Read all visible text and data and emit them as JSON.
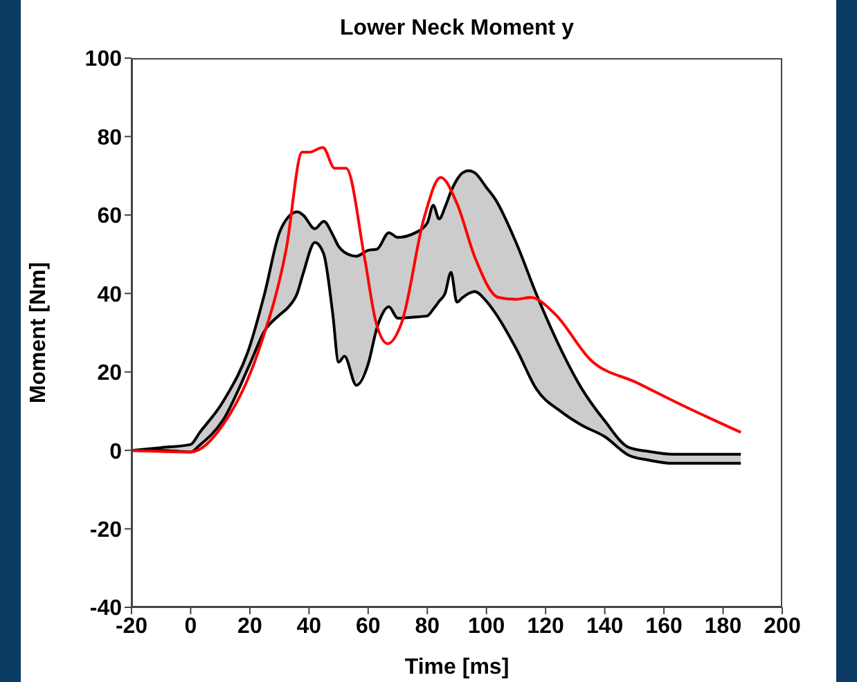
{
  "chart_data": {
    "type": "line",
    "title": "Lower Neck Moment y",
    "xlabel": "Time [ms]",
    "ylabel": "Moment [Nm]",
    "xlim": [
      -20,
      200
    ],
    "xticks": [
      -20,
      0,
      20,
      40,
      60,
      80,
      100,
      120,
      140,
      160,
      180,
      200
    ],
    "ylim": [
      -40,
      100
    ],
    "yticks": [
      -40,
      -20,
      0,
      20,
      40,
      60,
      80,
      100
    ],
    "grid": false,
    "series": [
      {
        "type": "line",
        "color": "#000000",
        "x": [
          -20,
          -10,
          0,
          3,
          11,
          20,
          25,
          30,
          33,
          36,
          38,
          42,
          45,
          48,
          50,
          52,
          56,
          60,
          63,
          67,
          70,
          76,
          80,
          82,
          84,
          86,
          88,
          90,
          92,
          94,
          96,
          100,
          103,
          110,
          117,
          125,
          132,
          140,
          148,
          155,
          163,
          175,
          186
        ],
        "upper": [
          0,
          0.7,
          1.5,
          4.5,
          12.5,
          26.6,
          40,
          55.5,
          59.5,
          60.8,
          60,
          56.5,
          58.4,
          55,
          52,
          50.5,
          49.5,
          51,
          51.3,
          55.5,
          54.3,
          55.5,
          58,
          62.5,
          59,
          62,
          66,
          69,
          70.8,
          71.3,
          70.8,
          67,
          64,
          53,
          39.6,
          26,
          16,
          7.5,
          0.8,
          -0.3,
          -1,
          -1,
          -1
        ],
        "values": [
          0,
          0.7,
          1.5,
          4.5,
          12.5,
          26.6,
          40,
          55.5,
          59.5,
          60.8,
          60,
          56.5,
          58.4,
          55,
          52,
          50.5,
          49.5,
          51,
          51.3,
          55.5,
          54.3,
          55.5,
          58,
          62.5,
          59,
          62,
          66,
          69,
          70.8,
          71.3,
          70.8,
          67,
          64,
          53,
          39.6,
          26,
          16,
          7.5,
          0.8,
          -0.3,
          -1,
          -1,
          -1
        ],
        "lower": [
          0,
          0,
          -0.4,
          1.3,
          7.8,
          22,
          30.5,
          34.5,
          36.5,
          40,
          45,
          53,
          50,
          35,
          22.5,
          24,
          16.6,
          22,
          31.3,
          36.6,
          33.7,
          34,
          34.3,
          36,
          38,
          40,
          45.4,
          37.8,
          39,
          40,
          40.5,
          38,
          35,
          26,
          15.5,
          10,
          6.5,
          3.5,
          -1.2,
          -2.5,
          -3.3,
          -3.3,
          -3.3
        ]
      },
      {
        "type": "line",
        "color": "#000000",
        "x": [
          -20,
          -10,
          0,
          3,
          11,
          20,
          25,
          30,
          33,
          36,
          38,
          42,
          45,
          48,
          50,
          52,
          56,
          60,
          63,
          67,
          70,
          76,
          80,
          82,
          84,
          86,
          88,
          90,
          92,
          94,
          96,
          100,
          103,
          110,
          117,
          125,
          132,
          140,
          148,
          155,
          163,
          175,
          186
        ],
        "values": [
          0,
          0,
          -0.4,
          1.3,
          7.8,
          22,
          30.5,
          34.5,
          36.5,
          40,
          45,
          53,
          50,
          35,
          22.5,
          24,
          16.6,
          22,
          31.3,
          36.6,
          33.7,
          34,
          34.3,
          36,
          38,
          40,
          45.4,
          37.8,
          39,
          40,
          40.5,
          38,
          35,
          26,
          15.5,
          10,
          6.5,
          3.5,
          -1.2,
          -2.5,
          -3.3,
          -3.3,
          -3.3
        ]
      },
      {
        "color": "#ff0000",
        "x": [
          -20,
          0,
          11,
          23,
          32.3,
          37.7,
          40,
          44.7,
          48.7,
          52.6,
          58.8,
          62.7,
          66.6,
          71.3,
          79,
          84.5,
          90,
          96.2,
          104,
          110,
          115,
          123,
          135.3,
          151,
          166.5,
          186
        ],
        "values": [
          0,
          -0.4,
          6.6,
          25.5,
          51.3,
          76,
          76,
          77.2,
          71.9,
          71.9,
          49,
          32.5,
          27.2,
          32.5,
          59.5,
          69.6,
          63,
          49,
          39,
          38.5,
          39,
          34.9,
          23,
          17.2,
          11.4,
          4.6
        ]
      }
    ]
  }
}
